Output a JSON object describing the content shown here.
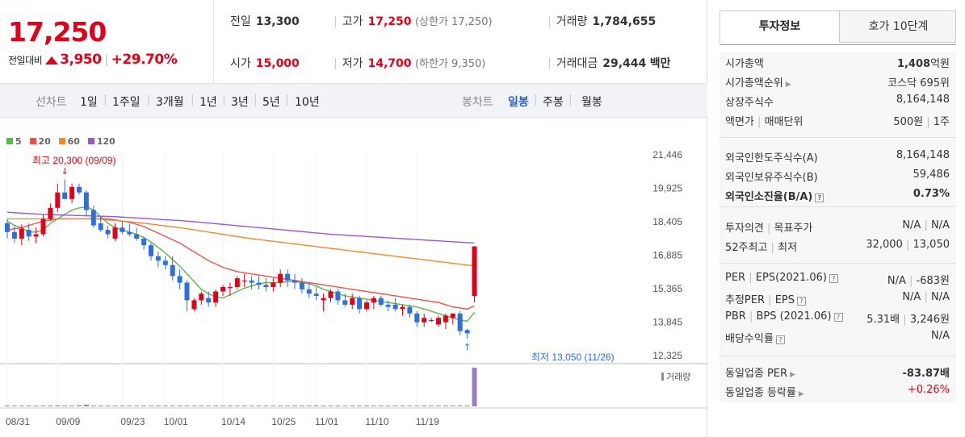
{
  "quote": {
    "price": "17,250",
    "change_label": "전일대비",
    "change": "3,950",
    "change_pct": "+29.70%"
  },
  "summary": {
    "prev_close_label": "전일",
    "prev_close": "13,300",
    "high_label": "고가",
    "high": "17,250",
    "upper_limit": "(상한가 17,250)",
    "volume_label": "거래량",
    "volume": "1,784,655",
    "open_label": "시가",
    "open": "15,000",
    "low_label": "저가",
    "low": "14,700",
    "lower_limit": "(하한가 9,350)",
    "amount_label": "거래대금",
    "amount": "29,444",
    "amount_unit": "백만"
  },
  "line_tabs": {
    "label": "선차트",
    "items": [
      "1일",
      "1주일",
      "3개월",
      "1년",
      "3년",
      "5년",
      "10년"
    ]
  },
  "candle_tabs": {
    "label": "봉차트",
    "items": [
      "일봉",
      "주봉",
      "월봉"
    ],
    "active": "일봉"
  },
  "legend": [
    {
      "name": "5",
      "color": "#5fb44b"
    },
    {
      "name": "20",
      "color": "#e8534f"
    },
    {
      "name": "60",
      "color": "#f08a2c"
    },
    {
      "name": "120",
      "color": "#9b59d0"
    }
  ],
  "colors": {
    "up": "#e0021b",
    "down": "#2f6fdb",
    "volume": "#9e7cc1"
  },
  "annotations": {
    "high": "최고 20,300 (09/09)",
    "low": "최저 13,050 (11/26)",
    "volume_label": "거래량"
  },
  "chart_data": {
    "type": "candlestick",
    "x_tick_labels": [
      "08/31",
      "09/09",
      "09/23",
      "10/01",
      "10/14",
      "10/25",
      "11/01",
      "11/10",
      "11/19"
    ],
    "x_tick_index": [
      0,
      7,
      16,
      22,
      30,
      37,
      43,
      50,
      57
    ],
    "y_tick_labels": [
      "21,446",
      "19,925",
      "18,405",
      "16,885",
      "15,365",
      "13,845",
      "12,325"
    ],
    "ylim": [
      12325,
      21446
    ],
    "ohlc": [
      [
        18300,
        18500,
        17600,
        17900
      ],
      [
        17900,
        18200,
        17400,
        17600
      ],
      [
        17600,
        18250,
        17300,
        18050
      ],
      [
        18000,
        18300,
        17500,
        17700
      ],
      [
        17700,
        18100,
        17400,
        17800
      ],
      [
        17800,
        18700,
        17700,
        18500
      ],
      [
        18500,
        19200,
        18400,
        19000
      ],
      [
        19000,
        20100,
        18800,
        19700
      ],
      [
        19700,
        20300,
        19400,
        19400
      ],
      [
        19400,
        20100,
        19200,
        19950
      ],
      [
        19950,
        20100,
        19600,
        19700
      ],
      [
        19700,
        19800,
        18600,
        18900
      ],
      [
        18900,
        19100,
        18100,
        18200
      ],
      [
        18300,
        18600,
        17900,
        18000
      ],
      [
        18000,
        18200,
        17600,
        17800
      ],
      [
        17600,
        18300,
        17500,
        18100
      ],
      [
        18100,
        18400,
        17800,
        17900
      ],
      [
        17900,
        18300,
        17700,
        17800
      ],
      [
        17800,
        18100,
        17500,
        17600
      ],
      [
        17600,
        17700,
        17100,
        17300
      ],
      [
        17300,
        17400,
        16600,
        16800
      ],
      [
        16800,
        17000,
        16300,
        16600
      ],
      [
        16600,
        16800,
        16200,
        16400
      ],
      [
        16400,
        16800,
        15700,
        15900
      ],
      [
        15900,
        16200,
        15300,
        15600
      ],
      [
        15600,
        15700,
        14300,
        14800
      ],
      [
        14400,
        14900,
        14300,
        14800
      ],
      [
        14800,
        15200,
        14600,
        15100
      ],
      [
        14900,
        15200,
        14500,
        14700
      ],
      [
        14700,
        15300,
        14500,
        15200
      ],
      [
        15200,
        15500,
        15000,
        15400
      ],
      [
        15400,
        15600,
        15000,
        15400
      ],
      [
        15400,
        15900,
        15300,
        15800
      ],
      [
        15700,
        16000,
        15400,
        15700
      ],
      [
        15700,
        15900,
        15300,
        15600
      ],
      [
        15600,
        15900,
        15300,
        15500
      ],
      [
        15500,
        15800,
        15200,
        15400
      ],
      [
        15400,
        15800,
        15200,
        15600
      ],
      [
        15600,
        16200,
        15400,
        16000
      ],
      [
        16000,
        16200,
        15400,
        15700
      ],
      [
        15700,
        16000,
        15300,
        15600
      ],
      [
        15600,
        15800,
        15100,
        15300
      ],
      [
        15300,
        15600,
        14900,
        15100
      ],
      [
        15100,
        15400,
        14800,
        15000
      ],
      [
        14800,
        15100,
        14300,
        14900
      ],
      [
        14900,
        15300,
        14700,
        15200
      ],
      [
        15200,
        15300,
        14600,
        14800
      ],
      [
        14800,
        15100,
        14500,
        14600
      ],
      [
        14600,
        15100,
        14400,
        14900
      ],
      [
        14900,
        15000,
        14200,
        14400
      ],
      [
        14400,
        14800,
        14300,
        14700
      ],
      [
        14700,
        15000,
        14400,
        14900
      ],
      [
        14900,
        15000,
        14500,
        14600
      ],
      [
        14600,
        14800,
        14300,
        14500
      ],
      [
        14600,
        14900,
        14300,
        14400
      ],
      [
        14400,
        14600,
        14100,
        14500
      ],
      [
        14500,
        14600,
        14000,
        14200
      ],
      [
        14200,
        14300,
        13600,
        13800
      ],
      [
        13800,
        14200,
        13600,
        14000
      ],
      [
        13900,
        14000,
        13800,
        13900
      ],
      [
        13700,
        14100,
        13600,
        14000
      ],
      [
        13800,
        14200,
        13500,
        14100
      ],
      [
        14000,
        14200,
        13700,
        14200
      ],
      [
        14200,
        14300,
        13200,
        13400
      ],
      [
        13450,
        13500,
        13050,
        13300
      ],
      [
        15000,
        17250,
        14700,
        17250
      ]
    ],
    "ma": {
      "5": [
        18400,
        18200,
        18100,
        17900,
        17900,
        18000,
        18300,
        18500,
        18700,
        18900,
        19000,
        19050,
        18900,
        18600,
        18300,
        18100,
        18000,
        17900,
        17800,
        17650,
        17450,
        17200,
        16950,
        16650,
        16350,
        16000,
        15650,
        15300,
        15100,
        14950,
        14900,
        15050,
        15200,
        15350,
        15450,
        15550,
        15600,
        15600,
        15600,
        15650,
        15650,
        15600,
        15550,
        15450,
        15300,
        15200,
        15100,
        15000,
        14950,
        14900,
        14850,
        14800,
        14750,
        14700,
        14650,
        14600,
        14550,
        14500,
        14400,
        14300,
        14200,
        14100,
        14000,
        13900,
        13850,
        14250
      ],
      "20": [
        18000,
        18050,
        18100,
        18200,
        18300,
        18400,
        18450,
        18500,
        18500,
        18500,
        18500,
        18500,
        18500,
        18500,
        18500,
        18450,
        18400,
        18350,
        18250,
        18150,
        18000,
        17850,
        17700,
        17550,
        17400,
        17200,
        17000,
        16800,
        16600,
        16450,
        16300,
        16200,
        16100,
        16050,
        16000,
        15950,
        15900,
        15850,
        15800,
        15750,
        15700,
        15650,
        15600,
        15550,
        15500,
        15450,
        15400,
        15350,
        15300,
        15250,
        15200,
        15150,
        15100,
        15050,
        15000,
        14950,
        14900,
        14850,
        14800,
        14750,
        14700,
        14600,
        14500,
        14450,
        14400,
        14550
      ],
      "60": [
        18500,
        18500,
        18500,
        18500,
        18500,
        18500,
        18500,
        18500,
        18500,
        18500,
        18500,
        18500,
        18500,
        18480,
        18450,
        18420,
        18400,
        18370,
        18340,
        18300,
        18260,
        18220,
        18180,
        18140,
        18100,
        18050,
        18000,
        17950,
        17900,
        17850,
        17800,
        17750,
        17700,
        17650,
        17600,
        17560,
        17520,
        17480,
        17440,
        17400,
        17360,
        17320,
        17280,
        17240,
        17200,
        17160,
        17120,
        17080,
        17040,
        17000,
        16960,
        16920,
        16880,
        16840,
        16800,
        16760,
        16720,
        16680,
        16640,
        16600,
        16560,
        16520,
        16480,
        16440,
        16400,
        16380
      ],
      "120": [
        18800,
        18780,
        18760,
        18740,
        18720,
        18700,
        18690,
        18680,
        18670,
        18660,
        18650,
        18640,
        18630,
        18620,
        18610,
        18600,
        18580,
        18560,
        18540,
        18520,
        18500,
        18480,
        18460,
        18440,
        18420,
        18400,
        18370,
        18340,
        18310,
        18280,
        18250,
        18220,
        18190,
        18160,
        18130,
        18100,
        18070,
        18040,
        18010,
        17980,
        17950,
        17920,
        17890,
        17860,
        17830,
        17800,
        17780,
        17760,
        17740,
        17720,
        17700,
        17680,
        17660,
        17640,
        17620,
        17600,
        17580,
        17560,
        17540,
        17520,
        17500,
        17480,
        17460,
        17440,
        17420,
        17400
      ]
    },
    "volume": [
      8000,
      12000,
      10000,
      9000,
      11000,
      30000,
      20000,
      45000,
      15000,
      25000,
      50000,
      80000,
      10000,
      15000,
      8000,
      9000,
      12000,
      10000,
      8000,
      9000,
      15000,
      10000,
      8000,
      12000,
      10000,
      9000,
      8000,
      10000,
      9000,
      11000,
      12000,
      9000,
      10000,
      8000,
      9000,
      10000,
      8000,
      9000,
      12000,
      10000,
      8000,
      9000,
      10000,
      8000,
      9000,
      10000,
      12000,
      9000,
      8000,
      10000,
      9000,
      8000,
      10000,
      9000,
      8000,
      9000,
      10000,
      12000,
      9000,
      8000,
      10000,
      9000,
      10000,
      30000,
      15000,
      1784655
    ]
  },
  "invest_tabs": {
    "active": "투자정보",
    "other": "호가 10단계"
  },
  "info": {
    "s1": [
      {
        "k": "시가총액",
        "v": "1,408",
        "u": "억원"
      },
      {
        "k": "시가총액순위",
        "v": "코스닥 695위"
      },
      {
        "k": "상장주식수",
        "v": "8,164,148"
      },
      {
        "k": "액면가",
        "k2": "매매단위",
        "v": "500원",
        "v2": "1주"
      }
    ],
    "s2": [
      {
        "k": "외국인한도주식수(A)",
        "v": "8,164,148"
      },
      {
        "k": "외국인보유주식수(B)",
        "v": "59,486"
      },
      {
        "k": "외국인소진율(B/A)",
        "v": "0.73%"
      }
    ],
    "s3": [
      {
        "k": "투자의견",
        "k2": "목표주가",
        "v": "N/A",
        "v2": "N/A"
      },
      {
        "k": "52주최고",
        "k2": "최저",
        "v": "32,000",
        "v2": "13,050"
      }
    ],
    "s4": [
      {
        "k": "PER",
        "k2": "EPS(2021.06)",
        "v": "N/A",
        "v2": "-683원"
      },
      {
        "k": "추정PER",
        "k2": "EPS",
        "v": "N/A",
        "v2": "N/A"
      },
      {
        "k": "PBR",
        "k2": "BPS (2021.06)",
        "v": "5.31배",
        "v2": "3,246원"
      },
      {
        "k": "배당수익률",
        "v": "N/A"
      }
    ],
    "s5": [
      {
        "k": "동일업종 PER",
        "v": "-83.87",
        "u": "배"
      },
      {
        "k": "동일업종 등락률",
        "v": "+0.26%"
      }
    ]
  }
}
